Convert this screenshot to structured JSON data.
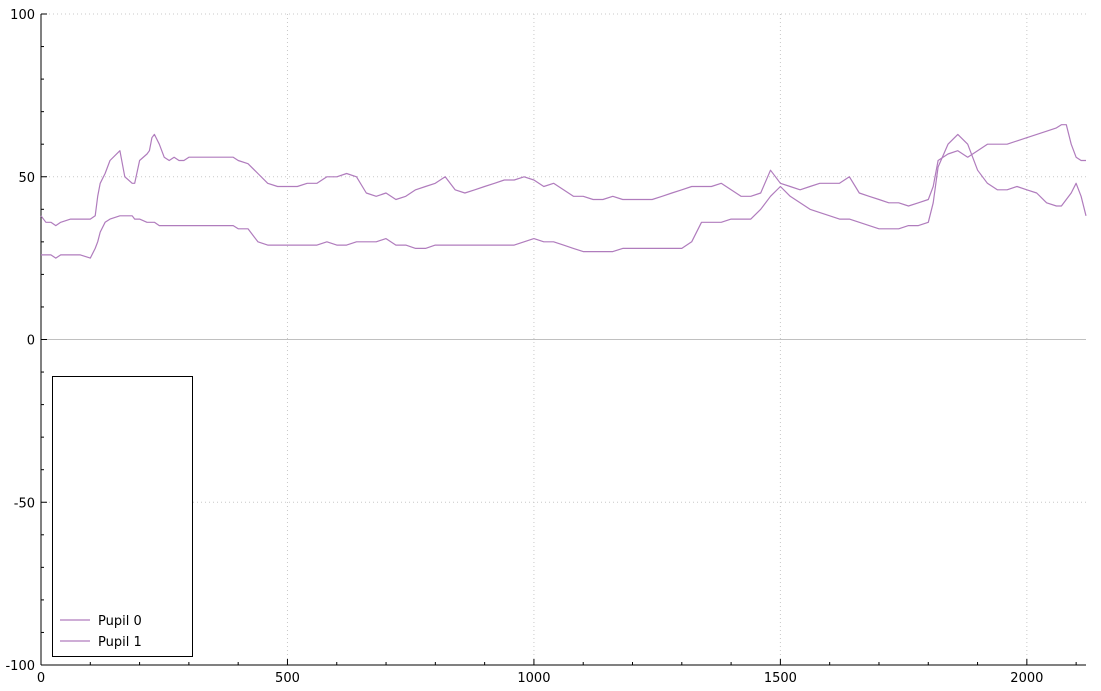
{
  "chart_data": {
    "type": "line",
    "title": "",
    "xlabel": "",
    "ylabel": "",
    "xlim": [
      0,
      2120
    ],
    "ylim": [
      -100,
      100
    ],
    "x_ticks": [
      0,
      500,
      1000,
      1500,
      2000
    ],
    "x_tick_labels": [
      "0",
      "500",
      "1000",
      "1500",
      "2000"
    ],
    "y_ticks": [
      -100,
      -50,
      0,
      50,
      100
    ],
    "y_tick_labels": [
      "-100",
      "-50",
      "0",
      "50",
      "100"
    ],
    "grid": true,
    "legend_position": "bottom-left",
    "line_color": "#b07cbd",
    "series": [
      {
        "name": "Pupil 0",
        "color": "#b07cbd",
        "x": [
          0,
          10,
          20,
          30,
          40,
          60,
          80,
          100,
          110,
          115,
          120,
          130,
          140,
          160,
          170,
          185,
          190,
          200,
          215,
          220,
          225,
          230,
          240,
          250,
          260,
          270,
          280,
          290,
          300,
          320,
          340,
          360,
          380,
          390,
          400,
          420,
          440,
          460,
          480,
          500,
          520,
          540,
          560,
          580,
          600,
          620,
          640,
          660,
          680,
          700,
          720,
          740,
          760,
          780,
          800,
          820,
          840,
          860,
          880,
          900,
          920,
          940,
          960,
          980,
          1000,
          1020,
          1040,
          1060,
          1080,
          1100,
          1120,
          1140,
          1160,
          1180,
          1200,
          1220,
          1240,
          1260,
          1280,
          1300,
          1320,
          1340,
          1360,
          1380,
          1400,
          1420,
          1440,
          1460,
          1480,
          1500,
          1520,
          1540,
          1560,
          1580,
          1600,
          1620,
          1640,
          1660,
          1680,
          1700,
          1720,
          1740,
          1760,
          1780,
          1800,
          1810,
          1820,
          1840,
          1860,
          1880,
          1900,
          1920,
          1940,
          1960,
          1980,
          2000,
          2020,
          2040,
          2060,
          2070,
          2080,
          2090,
          2100,
          2110,
          2120
        ],
        "y": [
          26,
          26,
          26,
          25,
          26,
          26,
          26,
          25,
          28,
          30,
          33,
          36,
          37,
          38,
          38,
          38,
          37,
          37,
          36,
          36,
          36,
          36,
          35,
          35,
          35,
          35,
          35,
          35,
          35,
          35,
          35,
          35,
          35,
          35,
          34,
          34,
          30,
          29,
          29,
          29,
          29,
          29,
          29,
          30,
          29,
          29,
          30,
          30,
          30,
          31,
          29,
          29,
          28,
          28,
          29,
          29,
          29,
          29,
          29,
          29,
          29,
          29,
          29,
          30,
          31,
          30,
          30,
          29,
          28,
          27,
          27,
          27,
          27,
          28,
          28,
          28,
          28,
          28,
          28,
          28,
          30,
          36,
          36,
          36,
          37,
          37,
          37,
          40,
          44,
          47,
          44,
          42,
          40,
          39,
          38,
          37,
          37,
          36,
          35,
          34,
          34,
          34,
          35,
          35,
          36,
          42,
          53,
          60,
          63,
          60,
          52,
          48,
          46,
          46,
          47,
          46,
          45,
          42,
          41,
          41,
          43,
          45,
          48,
          44,
          38
        ]
      },
      {
        "name": "Pupil 1",
        "color": "#b07cbd",
        "x": [
          0,
          10,
          20,
          30,
          40,
          60,
          80,
          100,
          110,
          115,
          120,
          130,
          140,
          160,
          170,
          185,
          190,
          200,
          215,
          220,
          225,
          230,
          240,
          250,
          260,
          270,
          280,
          290,
          300,
          320,
          340,
          360,
          380,
          390,
          400,
          420,
          440,
          460,
          480,
          500,
          520,
          540,
          560,
          580,
          600,
          620,
          640,
          660,
          680,
          700,
          720,
          740,
          760,
          780,
          800,
          820,
          840,
          860,
          880,
          900,
          920,
          940,
          960,
          980,
          1000,
          1020,
          1040,
          1060,
          1080,
          1100,
          1120,
          1140,
          1160,
          1180,
          1200,
          1220,
          1240,
          1260,
          1280,
          1300,
          1320,
          1340,
          1360,
          1380,
          1400,
          1420,
          1440,
          1460,
          1480,
          1500,
          1520,
          1540,
          1560,
          1580,
          1600,
          1620,
          1640,
          1660,
          1680,
          1700,
          1720,
          1740,
          1760,
          1780,
          1800,
          1810,
          1820,
          1840,
          1860,
          1880,
          1900,
          1920,
          1940,
          1960,
          1980,
          2000,
          2020,
          2040,
          2060,
          2070,
          2080,
          2090,
          2100,
          2110,
          2120
        ],
        "y": [
          38,
          36,
          36,
          35,
          36,
          37,
          37,
          37,
          38,
          44,
          48,
          51,
          55,
          58,
          50,
          48,
          48,
          55,
          57,
          58,
          62,
          63,
          60,
          56,
          55,
          56,
          55,
          55,
          56,
          56,
          56,
          56,
          56,
          56,
          55,
          54,
          51,
          48,
          47,
          47,
          47,
          48,
          48,
          50,
          50,
          51,
          50,
          45,
          44,
          45,
          43,
          44,
          46,
          47,
          48,
          50,
          46,
          45,
          46,
          47,
          48,
          49,
          49,
          50,
          49,
          47,
          48,
          46,
          44,
          44,
          43,
          43,
          44,
          43,
          43,
          43,
          43,
          44,
          45,
          46,
          47,
          47,
          47,
          48,
          46,
          44,
          44,
          45,
          52,
          48,
          47,
          46,
          47,
          48,
          48,
          48,
          50,
          45,
          44,
          43,
          42,
          42,
          41,
          42,
          43,
          47,
          55,
          57,
          58,
          56,
          58,
          60,
          60,
          60,
          61,
          62,
          63,
          64,
          65,
          66,
          66,
          60,
          56,
          55,
          55
        ]
      }
    ]
  }
}
